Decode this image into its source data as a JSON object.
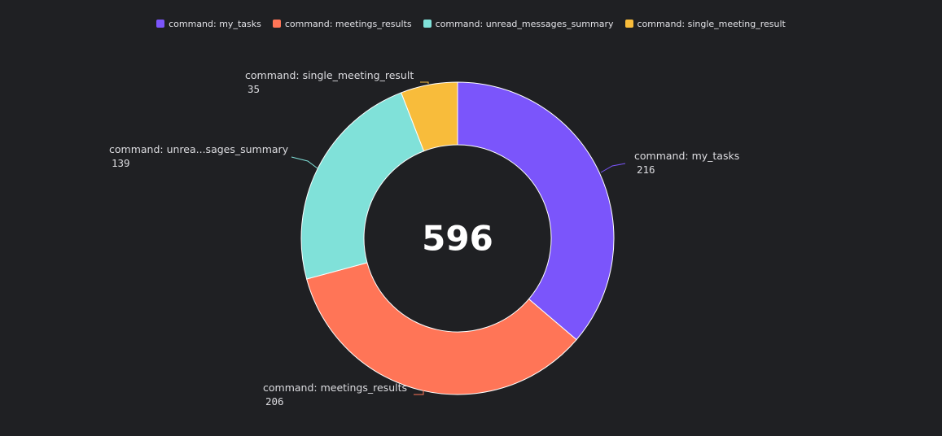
{
  "chart_data": {
    "type": "pie",
    "variant": "donut",
    "total_label": "596",
    "legend_position": "top-center",
    "slices": [
      {
        "name": "command: my_tasks",
        "label": "command: my_tasks",
        "value": 216,
        "color": "#7b55fb"
      },
      {
        "name": "command: meetings_results",
        "label": "command: meetings_results",
        "value": 206,
        "color": "#ff7557"
      },
      {
        "name": "command: unread_messages_summary",
        "label": "command: unrea...sages_summary",
        "value": 139,
        "color": "#80e1d9"
      },
      {
        "name": "command: single_meeting_result",
        "label": "command: single_meeting_result",
        "value": 35,
        "color": "#f8bc3b"
      }
    ]
  }
}
